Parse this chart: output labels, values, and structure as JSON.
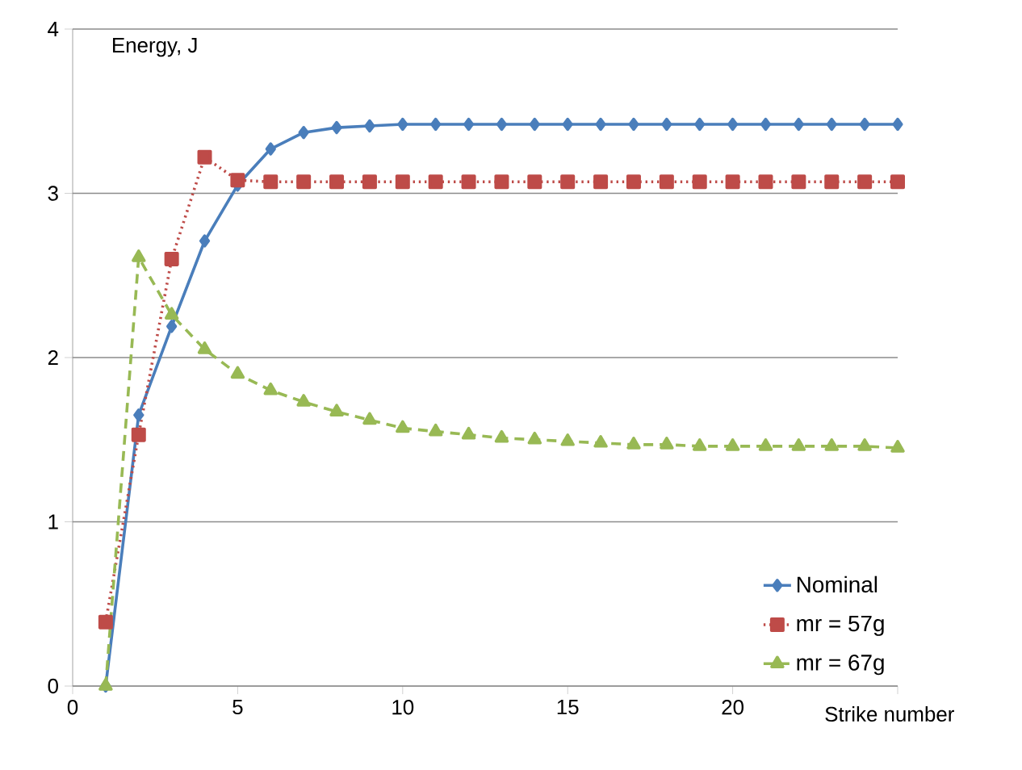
{
  "chart_data": {
    "type": "line",
    "ylabel": "Energy, J",
    "xlabel": "Strike number",
    "x": [
      1,
      2,
      3,
      4,
      5,
      6,
      7,
      8,
      9,
      10,
      11,
      12,
      13,
      14,
      15,
      16,
      17,
      18,
      19,
      20,
      21,
      22,
      23,
      24,
      25
    ],
    "series": [
      {
        "name": "Nominal",
        "color": "#4a7ebb",
        "marker": "diamond",
        "line_style": "solid",
        "values": [
          0.0,
          1.65,
          2.19,
          2.71,
          3.05,
          3.27,
          3.37,
          3.4,
          3.41,
          3.42,
          3.42,
          3.42,
          3.42,
          3.42,
          3.42,
          3.42,
          3.42,
          3.42,
          3.42,
          3.42,
          3.42,
          3.42,
          3.42,
          3.42,
          3.42
        ]
      },
      {
        "name": "mr = 57g",
        "color": "#be4b48",
        "marker": "square",
        "line_style": "dotted",
        "values": [
          0.39,
          1.53,
          2.6,
          3.22,
          3.08,
          3.07,
          3.07,
          3.07,
          3.07,
          3.07,
          3.07,
          3.07,
          3.07,
          3.07,
          3.07,
          3.07,
          3.07,
          3.07,
          3.07,
          3.07,
          3.07,
          3.07,
          3.07,
          3.07,
          3.07
        ]
      },
      {
        "name": "mr = 67g",
        "color": "#98b954",
        "marker": "triangle",
        "line_style": "dashed",
        "values": [
          0.0,
          2.61,
          2.26,
          2.05,
          1.9,
          1.8,
          1.73,
          1.67,
          1.62,
          1.57,
          1.55,
          1.53,
          1.51,
          1.5,
          1.49,
          1.48,
          1.47,
          1.47,
          1.46,
          1.46,
          1.46,
          1.46,
          1.46,
          1.46,
          1.45
        ]
      }
    ],
    "xlim": [
      0,
      25
    ],
    "xticks": [
      0,
      5,
      10,
      15,
      20,
      {
        "value": 25,
        "label": null
      }
    ],
    "ylim": [
      0,
      4
    ],
    "yticks": [
      0,
      1,
      2,
      3,
      4
    ],
    "grid": "y",
    "legend": "bottom right"
  }
}
